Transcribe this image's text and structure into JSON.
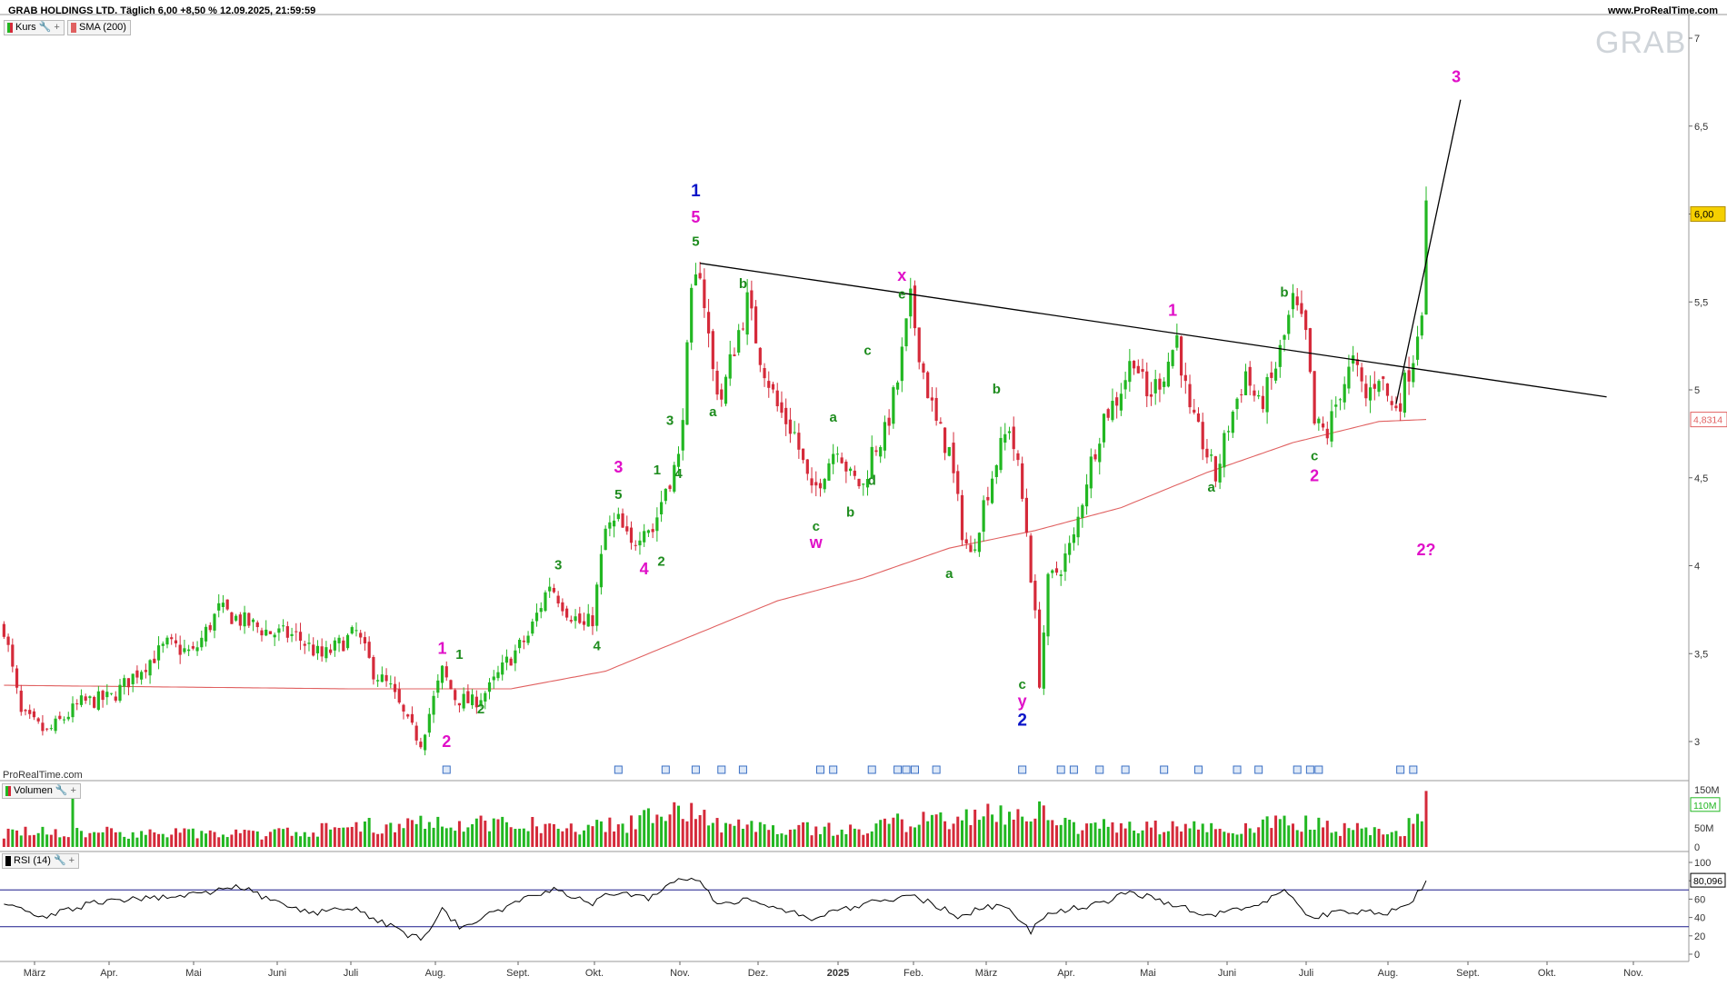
{
  "header": {
    "title": "GRAB HOLDINGS LTD. Täglich 6,00 +8,50 % 12.09.2025, 21:59:59",
    "site": "www.ProRealTime.com",
    "watermark": "GRAB",
    "provider": "ProRealTime.com"
  },
  "panels": {
    "price_tag": "Kurs",
    "sma_tag": "SMA (200)",
    "volume_tag": "Volumen",
    "rsi_tag": "RSI (14)"
  },
  "colors": {
    "up": "#22b722",
    "down": "#d52a3a",
    "sma": "#e06060",
    "trendline": "#000000",
    "rsi_line": "#000000",
    "rsi_bounds": "#1a1a8c",
    "wave_magenta": "#e010c8",
    "wave_green": "#1e8c1e",
    "wave_blue": "#0a14c8",
    "last_price_bg": "#f5d000"
  },
  "chart_data": [
    {
      "type": "candlestick",
      "title": "GRAB HOLDINGS LTD.",
      "x_ticks": [
        "März",
        "Apr.",
        "Mai",
        "Juni",
        "Juli",
        "Aug.",
        "Sept.",
        "Okt.",
        "Nov.",
        "Dez.",
        "2025",
        "Feb.",
        "März",
        "Apr.",
        "Mai",
        "Juni",
        "Juli",
        "Aug.",
        "Sept.",
        "Okt.",
        "Nov."
      ],
      "y_ticks": [
        "7",
        "6,5",
        "6",
        "5,5",
        "5",
        "4,5",
        "4",
        "3,5",
        "3"
      ],
      "y_range": [
        2.95,
        7.05
      ],
      "last_price": "6,00",
      "sma_value": "4,8314",
      "price_path": [
        {
          "t": 0,
          "p": 3.65
        },
        {
          "t": 4,
          "p": 3.15
        },
        {
          "t": 10,
          "p": 3.05
        },
        {
          "t": 18,
          "p": 3.22
        },
        {
          "t": 25,
          "p": 3.25
        },
        {
          "t": 32,
          "p": 3.42
        },
        {
          "t": 38,
          "p": 3.55
        },
        {
          "t": 44,
          "p": 3.5
        },
        {
          "t": 50,
          "p": 3.75
        },
        {
          "t": 56,
          "p": 3.68
        },
        {
          "t": 62,
          "p": 3.62
        },
        {
          "t": 68,
          "p": 3.6
        },
        {
          "t": 74,
          "p": 3.48
        },
        {
          "t": 78,
          "p": 3.55
        },
        {
          "t": 82,
          "p": 3.62
        },
        {
          "t": 86,
          "p": 3.4
        },
        {
          "t": 90,
          "p": 3.3
        },
        {
          "t": 94,
          "p": 3.1
        },
        {
          "t": 97,
          "p": 3.0
        },
        {
          "t": 102,
          "p": 3.4
        },
        {
          "t": 105,
          "p": 3.25
        },
        {
          "t": 109,
          "p": 3.22
        },
        {
          "t": 113,
          "p": 3.3
        },
        {
          "t": 117,
          "p": 3.45
        },
        {
          "t": 122,
          "p": 3.6
        },
        {
          "t": 127,
          "p": 3.9
        },
        {
          "t": 131,
          "p": 3.75
        },
        {
          "t": 135,
          "p": 3.65
        },
        {
          "t": 137,
          "p": 3.7
        },
        {
          "t": 140,
          "p": 4.2
        },
        {
          "t": 143,
          "p": 4.25
        },
        {
          "t": 146,
          "p": 4.1
        },
        {
          "t": 149,
          "p": 4.25
        },
        {
          "t": 151,
          "p": 4.2
        },
        {
          "t": 154,
          "p": 4.45
        },
        {
          "t": 157,
          "p": 4.6
        },
        {
          "t": 160,
          "p": 5.5
        },
        {
          "t": 162,
          "p": 5.7
        },
        {
          "t": 165,
          "p": 5.1
        },
        {
          "t": 167,
          "p": 4.95
        },
        {
          "t": 170,
          "p": 5.25
        },
        {
          "t": 173,
          "p": 5.5
        },
        {
          "t": 176,
          "p": 5.2
        },
        {
          "t": 180,
          "p": 4.9
        },
        {
          "t": 184,
          "p": 4.75
        },
        {
          "t": 188,
          "p": 4.4
        },
        {
          "t": 191,
          "p": 4.55
        },
        {
          "t": 194,
          "p": 4.7
        },
        {
          "t": 197,
          "p": 4.5
        },
        {
          "t": 200,
          "p": 4.45
        },
        {
          "t": 202,
          "p": 4.65
        },
        {
          "t": 205,
          "p": 4.75
        },
        {
          "t": 208,
          "p": 5.05
        },
        {
          "t": 211,
          "p": 5.5
        },
        {
          "t": 214,
          "p": 5.1
        },
        {
          "t": 217,
          "p": 4.8
        },
        {
          "t": 220,
          "p": 4.65
        },
        {
          "t": 223,
          "p": 4.2
        },
        {
          "t": 225,
          "p": 4.05
        },
        {
          "t": 228,
          "p": 4.35
        },
        {
          "t": 231,
          "p": 4.6
        },
        {
          "t": 234,
          "p": 4.8
        },
        {
          "t": 236,
          "p": 4.55
        },
        {
          "t": 238,
          "p": 4.2
        },
        {
          "t": 240,
          "p": 3.7
        },
        {
          "t": 241,
          "p": 3.35
        },
        {
          "t": 243,
          "p": 3.9
        },
        {
          "t": 246,
          "p": 4.0
        },
        {
          "t": 249,
          "p": 4.15
        },
        {
          "t": 252,
          "p": 4.5
        },
        {
          "t": 256,
          "p": 4.85
        },
        {
          "t": 259,
          "p": 4.95
        },
        {
          "t": 263,
          "p": 5.2
        },
        {
          "t": 266,
          "p": 4.95
        },
        {
          "t": 270,
          "p": 5.1
        },
        {
          "t": 273,
          "p": 5.3
        },
        {
          "t": 276,
          "p": 4.85
        },
        {
          "t": 279,
          "p": 4.7
        },
        {
          "t": 282,
          "p": 4.5
        },
        {
          "t": 285,
          "p": 4.8
        },
        {
          "t": 289,
          "p": 5.1
        },
        {
          "t": 292,
          "p": 4.9
        },
        {
          "t": 295,
          "p": 5.05
        },
        {
          "t": 298,
          "p": 5.3
        },
        {
          "t": 300,
          "p": 5.5
        },
        {
          "t": 303,
          "p": 5.3
        },
        {
          "t": 305,
          "p": 4.8
        },
        {
          "t": 308,
          "p": 4.75
        },
        {
          "t": 311,
          "p": 5.0
        },
        {
          "t": 314,
          "p": 5.15
        },
        {
          "t": 317,
          "p": 4.95
        },
        {
          "t": 320,
          "p": 5.1
        },
        {
          "t": 323,
          "p": 4.9
        },
        {
          "t": 325,
          "p": 4.95
        },
        {
          "t": 328,
          "p": 5.2
        },
        {
          "t": 330,
          "p": 5.5
        },
        {
          "t": 331,
          "p": 6.0
        }
      ],
      "sma_path": [
        {
          "t": 0,
          "p": 3.32
        },
        {
          "t": 40,
          "p": 3.31
        },
        {
          "t": 80,
          "p": 3.3
        },
        {
          "t": 118,
          "p": 3.3
        },
        {
          "t": 140,
          "p": 3.4
        },
        {
          "t": 160,
          "p": 3.6
        },
        {
          "t": 180,
          "p": 3.8
        },
        {
          "t": 200,
          "p": 3.93
        },
        {
          "t": 220,
          "p": 4.1
        },
        {
          "t": 240,
          "p": 4.2
        },
        {
          "t": 260,
          "p": 4.33
        },
        {
          "t": 280,
          "p": 4.53
        },
        {
          "t": 300,
          "p": 4.7
        },
        {
          "t": 320,
          "p": 4.82
        },
        {
          "t": 331,
          "p": 4.8314
        }
      ],
      "trendlines": [
        {
          "t1": 162,
          "p1": 5.72,
          "t2": 373,
          "p2": 4.96
        },
        {
          "t1": 324,
          "p1": 4.92,
          "t2": 339,
          "p2": 6.65
        }
      ],
      "wave_labels": [
        {
          "text": "1",
          "t": 102,
          "p": 3.5,
          "color": "magenta"
        },
        {
          "text": "2",
          "t": 103,
          "p": 2.97,
          "color": "magenta"
        },
        {
          "text": "1",
          "t": 106,
          "p": 3.47,
          "color": "green"
        },
        {
          "text": "2",
          "t": 111,
          "p": 3.16,
          "color": "green"
        },
        {
          "text": "3",
          "t": 129,
          "p": 3.98,
          "color": "green"
        },
        {
          "text": "4",
          "t": 138,
          "p": 3.52,
          "color": "green"
        },
        {
          "text": "3",
          "t": 143,
          "p": 4.53,
          "color": "magenta"
        },
        {
          "text": "5",
          "t": 143,
          "p": 4.38,
          "color": "green"
        },
        {
          "text": "4",
          "t": 149,
          "p": 3.95,
          "color": "magenta"
        },
        {
          "text": "2",
          "t": 153,
          "p": 4.0,
          "color": "green"
        },
        {
          "text": "1",
          "t": 152,
          "p": 4.52,
          "color": "green"
        },
        {
          "text": "3",
          "t": 155,
          "p": 4.8,
          "color": "green"
        },
        {
          "text": "4",
          "t": 157,
          "p": 4.5,
          "color": "green"
        },
        {
          "text": "5",
          "t": 161,
          "p": 5.82,
          "color": "green"
        },
        {
          "text": "5",
          "t": 161,
          "p": 5.95,
          "color": "magenta"
        },
        {
          "text": "1",
          "t": 161,
          "p": 6.1,
          "color": "blue"
        },
        {
          "text": "a",
          "t": 165,
          "p": 4.85,
          "color": "green"
        },
        {
          "text": "b",
          "t": 172,
          "p": 5.58,
          "color": "green"
        },
        {
          "text": "a",
          "t": 193,
          "p": 4.82,
          "color": "green"
        },
        {
          "text": "c",
          "t": 189,
          "p": 4.2,
          "color": "green"
        },
        {
          "text": "w",
          "t": 189,
          "p": 4.1,
          "color": "magenta"
        },
        {
          "text": "b",
          "t": 197,
          "p": 4.28,
          "color": "green"
        },
        {
          "text": "d",
          "t": 202,
          "p": 4.46,
          "color": "green"
        },
        {
          "text": "c",
          "t": 201,
          "p": 5.2,
          "color": "green"
        },
        {
          "text": "e",
          "t": 209,
          "p": 5.52,
          "color": "green"
        },
        {
          "text": "x",
          "t": 209,
          "p": 5.62,
          "color": "magenta"
        },
        {
          "text": "a",
          "t": 220,
          "p": 3.93,
          "color": "green"
        },
        {
          "text": "b",
          "t": 231,
          "p": 4.98,
          "color": "green"
        },
        {
          "text": "c",
          "t": 237,
          "p": 3.3,
          "color": "green"
        },
        {
          "text": "y",
          "t": 237,
          "p": 3.2,
          "color": "magenta"
        },
        {
          "text": "2",
          "t": 237,
          "p": 3.09,
          "color": "blue"
        },
        {
          "text": "1",
          "t": 272,
          "p": 5.42,
          "color": "magenta"
        },
        {
          "text": "a",
          "t": 281,
          "p": 4.42,
          "color": "green"
        },
        {
          "text": "b",
          "t": 298,
          "p": 5.53,
          "color": "green"
        },
        {
          "text": "c",
          "t": 305,
          "p": 4.6,
          "color": "green"
        },
        {
          "text": "2",
          "t": 305,
          "p": 4.48,
          "color": "magenta"
        },
        {
          "text": "2?",
          "t": 331,
          "p": 4.06,
          "color": "magenta"
        },
        {
          "text": "3",
          "t": 338,
          "p": 6.75,
          "color": "magenta"
        }
      ]
    },
    {
      "type": "bar",
      "title": "Volumen",
      "y_ticks": [
        "150M",
        "110M",
        "50M",
        "0"
      ],
      "y_range": [
        0,
        150
      ],
      "last_value": "110M",
      "volume_path": [
        {
          "t": 0,
          "v": 40
        },
        {
          "t": 15,
          "v": 40
        },
        {
          "t": 16,
          "v": 140
        },
        {
          "t": 17,
          "v": 40
        },
        {
          "t": 60,
          "v": 35
        },
        {
          "t": 100,
          "v": 70
        },
        {
          "t": 140,
          "v": 55
        },
        {
          "t": 155,
          "v": 90
        },
        {
          "t": 160,
          "v": 120
        },
        {
          "t": 165,
          "v": 60
        },
        {
          "t": 200,
          "v": 45
        },
        {
          "t": 210,
          "v": 70
        },
        {
          "t": 240,
          "v": 100
        },
        {
          "t": 245,
          "v": 60
        },
        {
          "t": 275,
          "v": 50
        },
        {
          "t": 300,
          "v": 65
        },
        {
          "t": 325,
          "v": 35
        },
        {
          "t": 331,
          "v": 110
        }
      ]
    },
    {
      "type": "line",
      "title": "RSI (14)",
      "y_ticks": [
        "100",
        "80",
        "60",
        "40",
        "20",
        "0"
      ],
      "y_range": [
        0,
        100
      ],
      "bounds": [
        70,
        30
      ],
      "last_value": "80,096",
      "rsi_path": [
        {
          "t": 0,
          "v": 58
        },
        {
          "t": 8,
          "v": 40
        },
        {
          "t": 20,
          "v": 55
        },
        {
          "t": 35,
          "v": 62
        },
        {
          "t": 48,
          "v": 66
        },
        {
          "t": 54,
          "v": 76
        },
        {
          "t": 62,
          "v": 58
        },
        {
          "t": 72,
          "v": 45
        },
        {
          "t": 80,
          "v": 52
        },
        {
          "t": 86,
          "v": 40
        },
        {
          "t": 92,
          "v": 25
        },
        {
          "t": 97,
          "v": 16
        },
        {
          "t": 102,
          "v": 48
        },
        {
          "t": 106,
          "v": 30
        },
        {
          "t": 115,
          "v": 48
        },
        {
          "t": 128,
          "v": 72
        },
        {
          "t": 137,
          "v": 55
        },
        {
          "t": 141,
          "v": 68
        },
        {
          "t": 150,
          "v": 60
        },
        {
          "t": 157,
          "v": 80
        },
        {
          "t": 161,
          "v": 83
        },
        {
          "t": 166,
          "v": 55
        },
        {
          "t": 174,
          "v": 60
        },
        {
          "t": 188,
          "v": 38
        },
        {
          "t": 196,
          "v": 50
        },
        {
          "t": 211,
          "v": 65
        },
        {
          "t": 222,
          "v": 42
        },
        {
          "t": 232,
          "v": 55
        },
        {
          "t": 239,
          "v": 25
        },
        {
          "t": 243,
          "v": 45
        },
        {
          "t": 255,
          "v": 55
        },
        {
          "t": 262,
          "v": 68
        },
        {
          "t": 272,
          "v": 55
        },
        {
          "t": 280,
          "v": 42
        },
        {
          "t": 292,
          "v": 55
        },
        {
          "t": 298,
          "v": 68
        },
        {
          "t": 304,
          "v": 40
        },
        {
          "t": 312,
          "v": 48
        },
        {
          "t": 322,
          "v": 44
        },
        {
          "t": 328,
          "v": 60
        },
        {
          "t": 331,
          "v": 80.1
        }
      ]
    }
  ]
}
